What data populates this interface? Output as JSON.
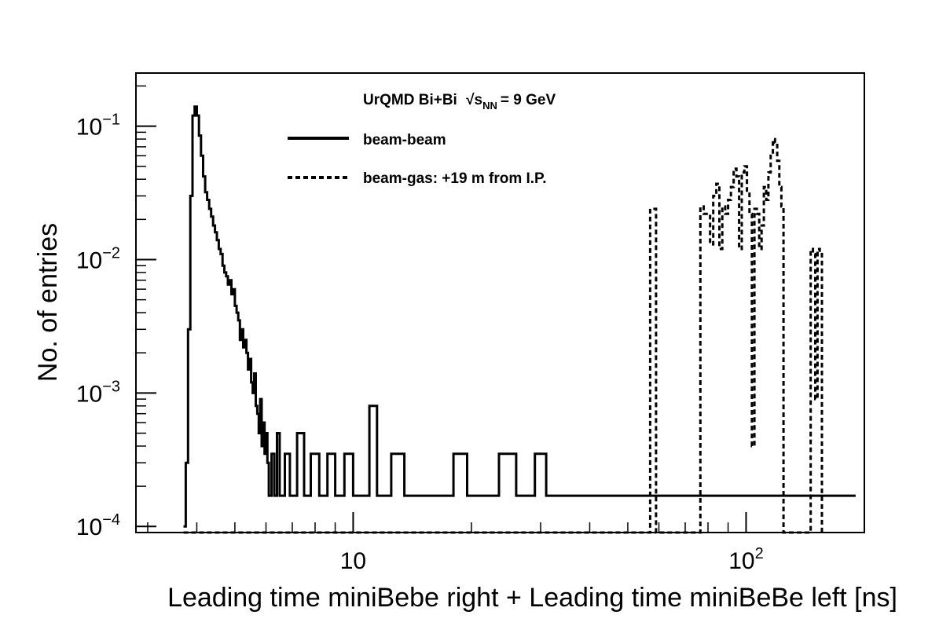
{
  "chart_data": {
    "type": "line",
    "subtype": "step-histogram",
    "title": "UrQMD Bi+Bi √s_NN = 9 GeV",
    "annotation": {
      "prefix": "UrQMD Bi+Bi",
      "s": "s",
      "sub": "NN",
      "suffix": "= 9 GeV"
    },
    "xlabel": "Leading time miniBebe right + Leading time miniBeBe left [ns]",
    "ylabel": "No. of entries",
    "x_scale": "log",
    "y_scale": "log",
    "xlim": [
      2.8,
      200
    ],
    "ylim": [
      9e-05,
      0.25
    ],
    "x_ticks": [
      {
        "value": 10,
        "base": "10",
        "exp": ""
      },
      {
        "value": 100,
        "base": "10",
        "exp": "2"
      }
    ],
    "y_ticks": [
      {
        "value": 0.1,
        "base": "10",
        "exp": "−1"
      },
      {
        "value": 0.01,
        "base": "10",
        "exp": "−2"
      },
      {
        "value": 0.001,
        "base": "10",
        "exp": "−3"
      },
      {
        "value": 0.0001,
        "base": "10",
        "exp": "−4"
      }
    ],
    "grid": false,
    "legend_position": "top",
    "series": [
      {
        "name": "beam-beam",
        "style": "solid",
        "color": "#000000",
        "points": [
          [
            3.7,
            0.0001
          ],
          [
            3.75,
            0.0003
          ],
          [
            3.8,
            0.003
          ],
          [
            3.85,
            0.03
          ],
          [
            3.9,
            0.12
          ],
          [
            3.95,
            0.14
          ],
          [
            4.0,
            0.12
          ],
          [
            4.05,
            0.085
          ],
          [
            4.1,
            0.06
          ],
          [
            4.15,
            0.042
          ],
          [
            4.2,
            0.032
          ],
          [
            4.25,
            0.028
          ],
          [
            4.3,
            0.024
          ],
          [
            4.35,
            0.021
          ],
          [
            4.4,
            0.018
          ],
          [
            4.45,
            0.016
          ],
          [
            4.5,
            0.014
          ],
          [
            4.55,
            0.012
          ],
          [
            4.6,
            0.011
          ],
          [
            4.65,
            0.009
          ],
          [
            4.7,
            0.008
          ],
          [
            4.75,
            0.0075
          ],
          [
            4.8,
            0.0065
          ],
          [
            4.85,
            0.007
          ],
          [
            4.9,
            0.0055
          ],
          [
            4.95,
            0.006
          ],
          [
            5.0,
            0.0045
          ],
          [
            5.05,
            0.004
          ],
          [
            5.1,
            0.0035
          ],
          [
            5.15,
            0.0025
          ],
          [
            5.2,
            0.003
          ],
          [
            5.25,
            0.0022
          ],
          [
            5.3,
            0.0025
          ],
          [
            5.35,
            0.002
          ],
          [
            5.4,
            0.0015
          ],
          [
            5.45,
            0.0018
          ],
          [
            5.5,
            0.0012
          ],
          [
            5.55,
            0.001
          ],
          [
            5.6,
            0.0014
          ],
          [
            5.65,
            0.0008
          ],
          [
            5.7,
            0.0007
          ],
          [
            5.75,
            0.0005
          ],
          [
            5.8,
            0.0009
          ],
          [
            5.85,
            0.0004
          ],
          [
            5.9,
            0.0006
          ],
          [
            5.95,
            0.00035
          ],
          [
            6.0,
            0.0005
          ],
          [
            6.05,
            0.0003
          ],
          [
            6.1,
            0.00017
          ],
          [
            6.2,
            0.00035
          ],
          [
            6.3,
            0.00017
          ],
          [
            6.4,
            0.0005
          ],
          [
            6.5,
            0.00017
          ],
          [
            6.7,
            0.00035
          ],
          [
            6.9,
            0.00017
          ],
          [
            7.2,
            0.0005
          ],
          [
            7.5,
            0.00017
          ],
          [
            7.8,
            0.00035
          ],
          [
            8.2,
            0.00017
          ],
          [
            8.6,
            0.00035
          ],
          [
            9.0,
            0.00017
          ],
          [
            9.5,
            0.00035
          ],
          [
            10.0,
            0.00017
          ],
          [
            11.0,
            0.0008
          ],
          [
            11.5,
            0.00017
          ],
          [
            12.5,
            0.00035
          ],
          [
            13.5,
            0.00017
          ],
          [
            15.0,
            0.00017
          ],
          [
            17.0,
            0.00017
          ],
          [
            18.0,
            0.00035
          ],
          [
            19.5,
            0.00017
          ],
          [
            22.0,
            0.00017
          ],
          [
            23.5,
            0.00035
          ],
          [
            26.0,
            0.00017
          ],
          [
            29.0,
            0.00035
          ],
          [
            31.0,
            0.00017
          ],
          [
            34.0,
            0.00017
          ],
          [
            38.0,
            0.00017
          ],
          [
            43.0,
            0.00017
          ],
          [
            48.0,
            0.00017
          ],
          [
            55.0,
            0.00017
          ],
          [
            62.0,
            0.00017
          ],
          [
            68.0,
            0.00017
          ],
          [
            75.0,
            0.00017
          ],
          [
            85.0,
            0.00017
          ],
          [
            92.0,
            0.00017
          ],
          [
            105.0,
            0.00017
          ],
          [
            118.0,
            0.00017
          ],
          [
            132.0,
            0.00017
          ],
          [
            145.0,
            0.00017
          ],
          [
            160.0,
            0.00017
          ],
          [
            175.0,
            0.00017
          ],
          [
            190.0,
            0.00017
          ]
        ]
      },
      {
        "name": "beam-gas: +19 m from I.P.",
        "style": "dashed",
        "color": "#000000",
        "points": [
          [
            3.7,
            9e-05
          ],
          [
            56.5,
            9e-05
          ],
          [
            57.0,
            0.024
          ],
          [
            58.5,
            0.024
          ],
          [
            59.0,
            9e-05
          ],
          [
            76.0,
            9e-05
          ],
          [
            76.5,
            0.025
          ],
          [
            78.0,
            0.022
          ],
          [
            79.5,
            0.022
          ],
          [
            81.0,
            0.013
          ],
          [
            82.5,
            0.03
          ],
          [
            84.0,
            0.037
          ],
          [
            85.5,
            0.012
          ],
          [
            87.0,
            0.025
          ],
          [
            88.5,
            0.022
          ],
          [
            90.0,
            0.028
          ],
          [
            91.5,
            0.035
          ],
          [
            93.0,
            0.048
          ],
          [
            94.5,
            0.042
          ],
          [
            96.0,
            0.012
          ],
          [
            97.5,
            0.045
          ],
          [
            99.0,
            0.05
          ],
          [
            100.5,
            0.032
          ],
          [
            102.0,
            0.022
          ],
          [
            103.5,
            0.0004
          ],
          [
            105.0,
            0.024
          ],
          [
            106.5,
            0.022
          ],
          [
            108.0,
            0.012
          ],
          [
            109.5,
            0.018
          ],
          [
            111.0,
            0.035
          ],
          [
            112.5,
            0.028
          ],
          [
            114.0,
            0.045
          ],
          [
            115.5,
            0.06
          ],
          [
            117.0,
            0.08
          ],
          [
            118.5,
            0.075
          ],
          [
            120.0,
            0.055
          ],
          [
            121.5,
            0.035
          ],
          [
            123.0,
            0.025
          ],
          [
            124.5,
            9e-05
          ],
          [
            145.0,
            9e-05
          ],
          [
            146.0,
            0.012
          ],
          [
            148.0,
            0.011
          ],
          [
            150.0,
            0.0009
          ],
          [
            152.0,
            0.012
          ],
          [
            154.0,
            0.011
          ],
          [
            156.0,
            9e-05
          ]
        ]
      }
    ]
  }
}
